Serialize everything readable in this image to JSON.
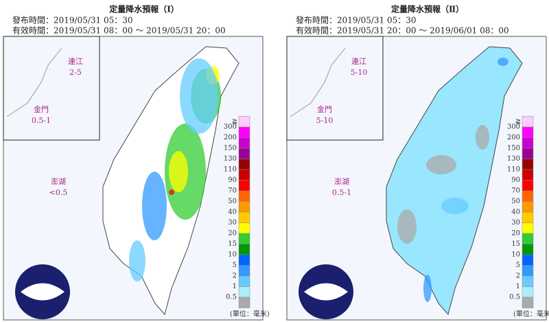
{
  "panels": [
    {
      "title": "定量降水預報（Ⅰ）",
      "issued": "發布時間：2019/05/31 05：30",
      "valid": "有效時間：2019/05/31 08：00 ～ 2019/05/31 20：00",
      "islands": [
        {
          "name": "連江",
          "value": "2-5"
        },
        {
          "name": "金門",
          "value": "0.5-1"
        },
        {
          "name": "澎湖",
          "value": "<0.5"
        }
      ],
      "unit": "(單位：毫米)"
    },
    {
      "title": "定量降水預報（Ⅱ）",
      "issued": "發布時間：2019/05/31 05：30",
      "valid": "有效時間：2019/05/31 20：00 ～ 2019/06/01 08：00",
      "islands": [
        {
          "name": "連江",
          "value": "5-10"
        },
        {
          "name": "金門",
          "value": "5-10"
        },
        {
          "name": "澎湖",
          "value": "0.5-1"
        }
      ],
      "unit": "(單位：毫米)"
    }
  ],
  "legend": {
    "top_symbol": "≧",
    "levels": [
      {
        "label": "300",
        "color": "#ffccff"
      },
      {
        "label": "200",
        "color": "#ff00ff"
      },
      {
        "label": "150",
        "color": "#cc00cc"
      },
      {
        "label": "130",
        "color": "#990099"
      },
      {
        "label": "110",
        "color": "#990000"
      },
      {
        "label": "90",
        "color": "#cc0000"
      },
      {
        "label": "70",
        "color": "#ff0000"
      },
      {
        "label": "50",
        "color": "#ff6600"
      },
      {
        "label": "40",
        "color": "#ff9900"
      },
      {
        "label": "30",
        "color": "#ffcc00"
      },
      {
        "label": "20",
        "color": "#ffff00"
      },
      {
        "label": "15",
        "color": "#33cc33"
      },
      {
        "label": "10",
        "color": "#009900"
      },
      {
        "label": "5",
        "color": "#0066ff"
      },
      {
        "label": "2",
        "color": "#3399ff"
      },
      {
        "label": "1",
        "color": "#66ccff"
      },
      {
        "label": "0.5",
        "color": "#aaeeff"
      }
    ]
  }
}
